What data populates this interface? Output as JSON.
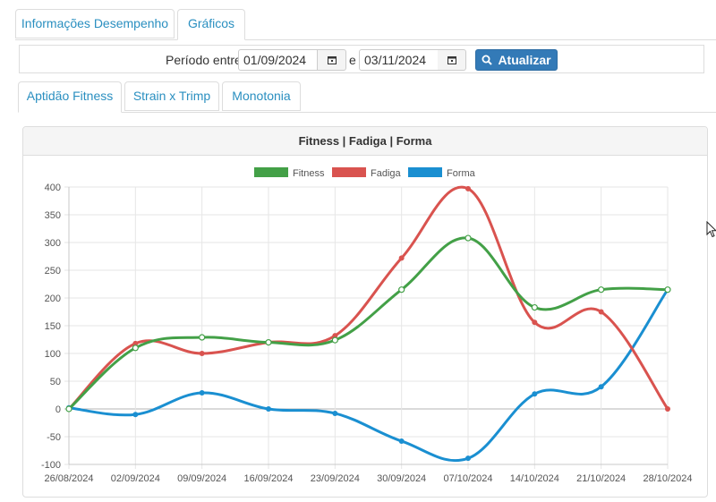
{
  "tabs": {
    "main": [
      "Informações Desempenho",
      "Gráficos"
    ],
    "main_active": 1
  },
  "filter": {
    "label_start": "Período entre",
    "date_from": "01/09/2024",
    "label_sep": "e",
    "date_to": "03/11/2024",
    "refresh_label": "Atualizar",
    "refresh_icon": "search-icon",
    "calendar_icon": "calendar-icon"
  },
  "subtabs": {
    "items": [
      "Aptidão Fitness",
      "Strain x Trimp",
      "Monotonia"
    ],
    "active": 0
  },
  "panel": {
    "title": "Fitness | Fadiga | Forma"
  },
  "chart_data": {
    "type": "line",
    "title": "Fitness | Fadiga | Forma",
    "xlabel": "",
    "ylabel": "",
    "categories": [
      "26/08/2024",
      "02/09/2024",
      "09/09/2024",
      "16/09/2024",
      "23/09/2024",
      "30/09/2024",
      "07/10/2024",
      "14/10/2024",
      "21/10/2024",
      "28/10/2024"
    ],
    "ylim": [
      -100,
      400
    ],
    "yticks": [
      -100,
      -50,
      0,
      50,
      100,
      150,
      200,
      250,
      300,
      350,
      400
    ],
    "grid": true,
    "legend_position": "top-center",
    "series": [
      {
        "name": "Fitness",
        "color": "#43a047",
        "marker": "hollow",
        "values": [
          0,
          110,
          129,
          120,
          124,
          215,
          308,
          183,
          215,
          215
        ]
      },
      {
        "name": "Fadiga",
        "color": "#d9534f",
        "marker": "filled",
        "values": [
          0,
          118,
          100,
          120,
          132,
          272,
          397,
          156,
          175,
          0
        ]
      },
      {
        "name": "Forma",
        "color": "#1a8fd1",
        "marker": "filled",
        "values": [
          2,
          -10,
          29,
          0,
          -8,
          -58,
          -89,
          27,
          40,
          215
        ]
      }
    ]
  }
}
